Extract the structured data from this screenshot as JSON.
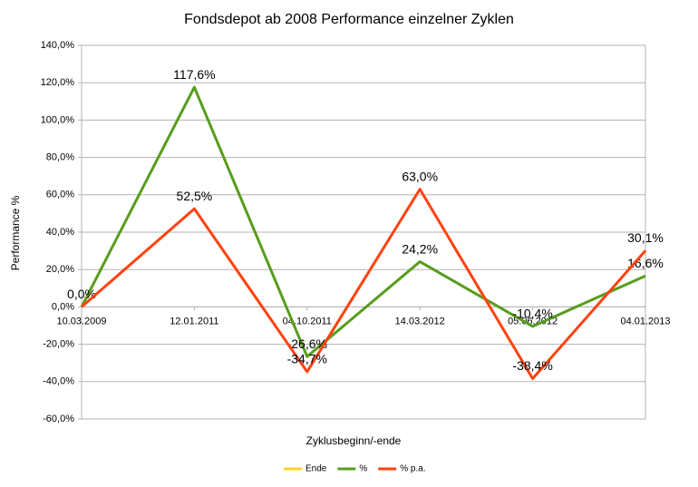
{
  "chart_data": {
    "type": "line",
    "title": "Fondsdepot ab 2008 Performance einzelner Zyklen",
    "x_label": "Zyklusbeginn/-ende",
    "y_label": "Performance %",
    "categories": [
      "10.03.2009",
      "12.01.2011",
      "04.10.2011",
      "14.03.2012",
      "05.06.2012",
      "04.01.2013"
    ],
    "series": [
      {
        "name": "Ende",
        "color": "#ffd320",
        "values": [
          null,
          null,
          null,
          null,
          null,
          null
        ]
      },
      {
        "name": "%",
        "color": "#579d1c",
        "values": [
          0.0,
          117.6,
          -26.6,
          24.2,
          -10.4,
          16.6
        ],
        "value_labels": [
          "0,0%",
          "117,6%",
          "-26,6%",
          "24,2%",
          "-10,4%",
          "16,6%"
        ]
      },
      {
        "name": "% p.a.",
        "color": "#ff420e",
        "values": [
          0.0,
          52.5,
          -34.7,
          63.0,
          -38.4,
          30.1
        ],
        "value_labels": [
          null,
          "52,5%",
          "-34,7%",
          "63,0%",
          "-38,4%",
          "30,1%"
        ]
      }
    ],
    "ylim": [
      -60,
      140
    ],
    "yticks": [
      {
        "value": -60,
        "label": "-60,0%"
      },
      {
        "value": -40,
        "label": "-40,0%"
      },
      {
        "value": -20,
        "label": "-20,0%"
      },
      {
        "value": 0,
        "label": "0,0%"
      },
      {
        "value": 20,
        "label": "20,0%"
      },
      {
        "value": 40,
        "label": "40,0%"
      },
      {
        "value": 60,
        "label": "60,0%"
      },
      {
        "value": 80,
        "label": "80,0%"
      },
      {
        "value": 100,
        "label": "100,0%"
      },
      {
        "value": 120,
        "label": "120,0%"
      },
      {
        "value": 140,
        "label": "140,0%"
      }
    ],
    "grid": true,
    "legend": "bottom"
  }
}
